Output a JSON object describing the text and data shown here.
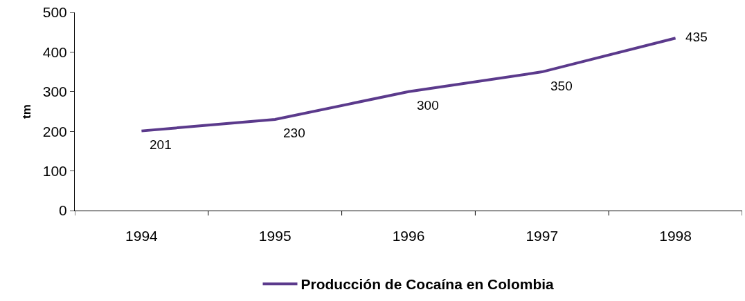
{
  "chart_data": {
    "type": "line",
    "ylabel": "tm",
    "categories": [
      "1994",
      "1995",
      "1996",
      "1997",
      "1998"
    ],
    "series": [
      {
        "name": "Producción de Cocaína en Colombia",
        "color": "#5b3a8c",
        "values": [
          201,
          230,
          300,
          350,
          435
        ]
      }
    ],
    "ylim": [
      0,
      500
    ],
    "yticks": [
      0,
      100,
      200,
      300,
      400,
      500
    ],
    "legend": "bottom",
    "data_labels": true,
    "marker": "none",
    "line_style": "solid"
  }
}
